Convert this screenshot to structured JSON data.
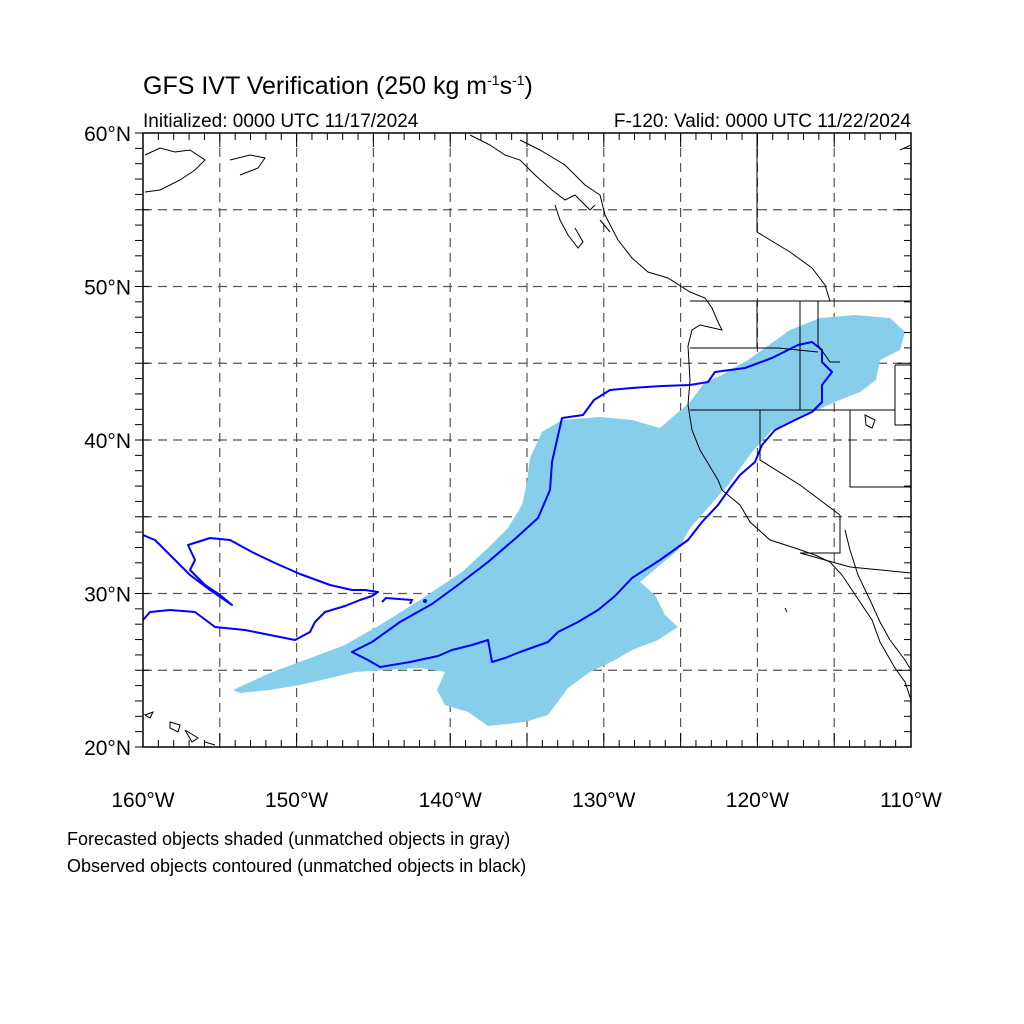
{
  "title": {
    "main_prefix": "GFS IVT Verification (250 kg m",
    "exp1": "-1",
    "mid": "s",
    "exp2": "-1",
    "suffix": ")"
  },
  "subtitle": {
    "left": "Initialized: 0000 UTC 11/17/2024",
    "right": "F-120: Valid: 0000 UTC 11/22/2024"
  },
  "notes": [
    "Forecasted objects shaded (unmatched objects in gray)",
    "Observed objects contoured (unmatched objects in black)"
  ],
  "map": {
    "extent": {
      "lon_min": -160,
      "lon_max": -110,
      "lat_min": 20,
      "lat_max": 60
    },
    "lat_labels": [
      "20°N",
      "30°N",
      "40°N",
      "50°N",
      "60°N"
    ],
    "lon_labels": [
      "160°W",
      "150°W",
      "140°W",
      "130°W",
      "120°W",
      "110°W"
    ],
    "colors": {
      "forecast_fill": "#87ceeb",
      "observed_contour": "#0000ff",
      "coastline": "#000000",
      "gridline": "#555555"
    },
    "legend_semantics": {
      "forecast": "shaded",
      "observed": "contoured"
    }
  }
}
